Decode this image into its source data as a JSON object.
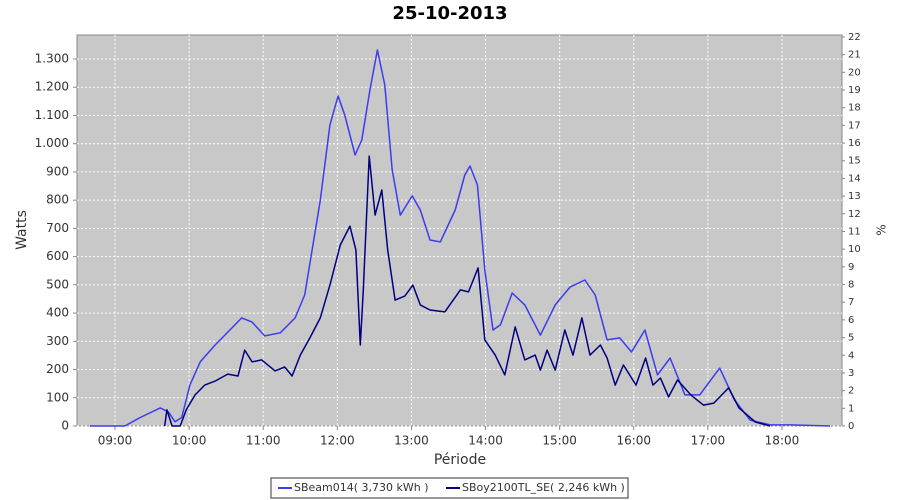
{
  "chart_data": {
    "type": "line",
    "title": "25-10-2013",
    "xlabel": "Période",
    "ylabel": "Watts",
    "y2label": "%",
    "grid": true,
    "legend": "bottom",
    "xlim": [
      8.487,
      18.81
    ],
    "xticks": [
      {
        "value": 9,
        "label": "09:00"
      },
      {
        "value": 10,
        "label": "10:00"
      },
      {
        "value": 11,
        "label": "11:00"
      },
      {
        "value": 12,
        "label": "12:00"
      },
      {
        "value": 13,
        "label": "13:00"
      },
      {
        "value": 14,
        "label": "14:00"
      },
      {
        "value": 15,
        "label": "15:00"
      },
      {
        "value": 16,
        "label": "16:00"
      },
      {
        "value": 17,
        "label": "17:00"
      },
      {
        "value": 18,
        "label": "18:00"
      }
    ],
    "ylim": [
      0,
      1385
    ],
    "yticks": [
      0,
      100,
      200,
      300,
      400,
      500,
      600,
      700,
      800,
      900,
      {
        "value": 1000,
        "label": "1.000"
      },
      {
        "value": 1100,
        "label": "1.100"
      },
      {
        "value": 1200,
        "label": "1.200"
      },
      {
        "value": 1300,
        "label": "1.300"
      }
    ],
    "y2lim": [
      0,
      22.11
    ],
    "y2ticks": [
      0,
      1,
      2,
      3,
      4,
      5,
      6,
      7,
      8,
      9,
      10,
      11,
      12,
      13,
      14,
      15,
      16,
      17,
      18,
      19,
      20,
      21,
      22
    ],
    "series": [
      {
        "name": "SBeam014( 3,730 kWh )",
        "color": "#3c3cf0",
        "x": [
          8.66,
          9.13,
          9.34,
          9.61,
          9.72,
          9.81,
          9.9,
          10.01,
          10.15,
          10.35,
          10.55,
          10.71,
          10.85,
          11.02,
          11.23,
          11.43,
          11.56,
          11.77,
          11.9,
          12.01,
          12.1,
          12.24,
          12.33,
          12.44,
          12.54,
          12.64,
          12.74,
          12.85,
          13.01,
          13.12,
          13.25,
          13.39,
          13.59,
          13.72,
          13.79,
          13.89,
          13.99,
          14.1,
          14.2,
          14.36,
          14.53,
          14.74,
          14.94,
          15.14,
          15.34,
          15.48,
          15.64,
          15.81,
          15.97,
          16.15,
          16.32,
          16.49,
          16.69,
          16.89,
          17.16,
          17.36,
          17.57,
          17.84,
          18.11,
          18.65
        ],
        "values": [
          0,
          0,
          30,
          64,
          50,
          15,
          30,
          145,
          227,
          287,
          340,
          383,
          368,
          319,
          330,
          383,
          464,
          800,
          1066,
          1169,
          1102,
          960,
          1013,
          1190,
          1332,
          1208,
          907,
          747,
          815,
          765,
          659,
          652,
          765,
          889,
          921,
          854,
          553,
          340,
          358,
          471,
          429,
          322,
          429,
          492,
          517,
          464,
          305,
          312,
          262,
          340,
          181,
          241,
          110,
          110,
          205,
          92,
          21,
          4,
          4,
          0
        ]
      },
      {
        "name": "SBoy2100TL_SE( 2,246 kWh )",
        "color": "#000080",
        "x": [
          9.67,
          9.7,
          9.77,
          9.88,
          9.96,
          10.08,
          10.21,
          10.35,
          10.52,
          10.66,
          10.75,
          10.85,
          10.98,
          11.16,
          11.29,
          11.39,
          11.5,
          11.63,
          11.77,
          11.9,
          12.04,
          12.17,
          12.25,
          12.31,
          12.35,
          12.43,
          12.51,
          12.6,
          12.68,
          12.78,
          12.91,
          13.02,
          13.12,
          13.25,
          13.45,
          13.66,
          13.77,
          13.9,
          13.99,
          14.13,
          14.26,
          14.4,
          14.53,
          14.67,
          14.74,
          14.83,
          14.94,
          15.07,
          15.18,
          15.3,
          15.41,
          15.55,
          15.64,
          15.75,
          15.86,
          16.03,
          16.16,
          16.26,
          16.36,
          16.47,
          16.59,
          16.77,
          16.94,
          17.08,
          17.28,
          17.42,
          17.64,
          17.84
        ],
        "values": [
          0,
          57,
          0,
          0,
          57,
          110,
          145,
          159,
          184,
          177,
          269,
          227,
          234,
          195,
          209,
          177,
          251,
          312,
          383,
          499,
          641,
          708,
          623,
          287,
          482,
          956,
          747,
          836,
          623,
          446,
          460,
          499,
          429,
          411,
          404,
          482,
          475,
          560,
          305,
          251,
          181,
          351,
          234,
          251,
          198,
          269,
          198,
          340,
          251,
          383,
          251,
          287,
          241,
          145,
          216,
          145,
          241,
          145,
          170,
          103,
          163,
          110,
          74,
          81,
          135,
          64,
          14,
          0
        ]
      }
    ]
  }
}
